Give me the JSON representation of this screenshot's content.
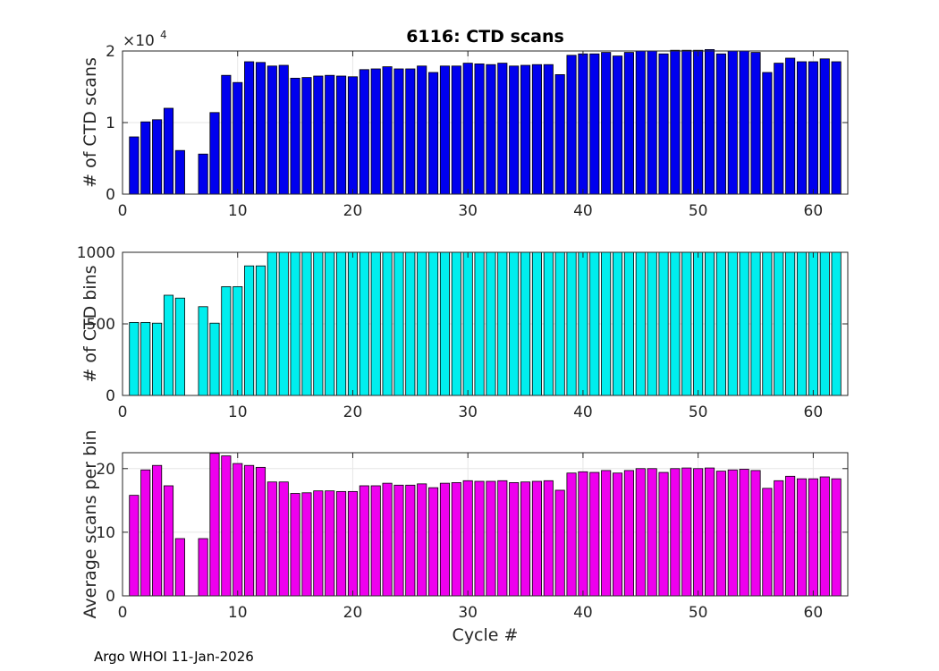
{
  "footer": "Argo WHOI 11-Jan-2026",
  "chart_data": [
    {
      "type": "bar",
      "title": "6116: CTD scans",
      "xlabel": "",
      "ylabel": "# of CTD scans",
      "xlim": [
        0,
        63
      ],
      "ylim": [
        0,
        20000
      ],
      "xticks": [
        0,
        10,
        20,
        30,
        40,
        50,
        60
      ],
      "yticks": [
        0,
        10000,
        20000
      ],
      "ytick_labels": [
        "0",
        "1",
        "2"
      ],
      "exponent_label": "×10",
      "exponent_power": "4",
      "color": "#0000ee",
      "x": [
        1,
        2,
        3,
        4,
        5,
        7,
        8,
        9,
        10,
        11,
        12,
        13,
        14,
        15,
        16,
        17,
        18,
        19,
        20,
        21,
        22,
        23,
        24,
        25,
        26,
        27,
        28,
        29,
        30,
        31,
        32,
        33,
        34,
        35,
        36,
        37,
        38,
        39,
        40,
        41,
        42,
        43,
        44,
        45,
        46,
        47,
        48,
        49,
        50,
        51,
        52,
        53,
        54,
        55,
        56,
        57,
        58,
        59,
        60,
        61,
        62
      ],
      "values": [
        8000,
        10100,
        10400,
        12000,
        6100,
        5600,
        11400,
        16600,
        15600,
        18500,
        18400,
        17900,
        18000,
        16200,
        16300,
        16500,
        16600,
        16500,
        16400,
        17400,
        17500,
        17800,
        17500,
        17500,
        17900,
        17000,
        17900,
        17900,
        18300,
        18200,
        18100,
        18300,
        17900,
        18000,
        18100,
        18100,
        16700,
        19400,
        19600,
        19600,
        19800,
        19300,
        19800,
        20000,
        20000,
        19600,
        20100,
        20100,
        20100,
        20200,
        19600,
        20000,
        20000,
        19800,
        17000,
        18300,
        19000,
        18500,
        18500,
        18900,
        18500
      ]
    },
    {
      "type": "bar",
      "title": "",
      "xlabel": "",
      "ylabel": "# of CTD bins",
      "xlim": [
        0,
        63
      ],
      "ylim": [
        0,
        1000
      ],
      "xticks": [
        0,
        10,
        20,
        30,
        40,
        50,
        60
      ],
      "yticks": [
        0,
        500,
        1000
      ],
      "ytick_labels": [
        "0",
        "500",
        "1000"
      ],
      "color": "#00eeee",
      "x": [
        1,
        2,
        3,
        4,
        5,
        7,
        8,
        9,
        10,
        11,
        12,
        13,
        14,
        15,
        16,
        17,
        18,
        19,
        20,
        21,
        22,
        23,
        24,
        25,
        26,
        27,
        28,
        29,
        30,
        31,
        32,
        33,
        34,
        35,
        36,
        37,
        38,
        39,
        40,
        41,
        42,
        43,
        44,
        45,
        46,
        47,
        48,
        49,
        50,
        51,
        52,
        53,
        54,
        55,
        56,
        57,
        58,
        59,
        60,
        61,
        62
      ],
      "values": [
        510,
        510,
        505,
        700,
        680,
        620,
        505,
        760,
        760,
        905,
        905,
        1000,
        1000,
        1000,
        1000,
        1000,
        1000,
        1000,
        1000,
        1000,
        1000,
        1000,
        1000,
        1000,
        1000,
        1000,
        1000,
        1000,
        1000,
        1000,
        1000,
        1000,
        1000,
        1000,
        1000,
        1000,
        1000,
        1000,
        1000,
        1000,
        1000,
        1000,
        1000,
        1000,
        1000,
        1000,
        1000,
        1000,
        1000,
        1000,
        1000,
        1000,
        1000,
        1000,
        1000,
        1000,
        1000,
        1000,
        1000,
        1000,
        1000
      ]
    },
    {
      "type": "bar",
      "title": "",
      "xlabel": "Cycle #",
      "ylabel": "Average scans per bin",
      "xlim": [
        0,
        63
      ],
      "ylim": [
        0,
        22.5
      ],
      "xticks": [
        0,
        10,
        20,
        30,
        40,
        50,
        60
      ],
      "yticks": [
        0,
        10,
        20
      ],
      "ytick_labels": [
        "0",
        "10",
        "20"
      ],
      "color": "#ee00ee",
      "x": [
        1,
        2,
        3,
        4,
        5,
        7,
        8,
        9,
        10,
        11,
        12,
        13,
        14,
        15,
        16,
        17,
        18,
        19,
        20,
        21,
        22,
        23,
        24,
        25,
        26,
        27,
        28,
        29,
        30,
        31,
        32,
        33,
        34,
        35,
        36,
        37,
        38,
        39,
        40,
        41,
        42,
        43,
        44,
        45,
        46,
        47,
        48,
        49,
        50,
        51,
        52,
        53,
        54,
        55,
        56,
        57,
        58,
        59,
        60,
        61,
        62
      ],
      "values": [
        15.8,
        19.8,
        20.5,
        17.3,
        9.0,
        9.0,
        22.4,
        22.0,
        20.8,
        20.5,
        20.2,
        17.9,
        17.9,
        16.1,
        16.2,
        16.5,
        16.5,
        16.4,
        16.4,
        17.3,
        17.3,
        17.7,
        17.4,
        17.4,
        17.6,
        17.0,
        17.7,
        17.8,
        18.1,
        18.0,
        18.0,
        18.1,
        17.8,
        17.9,
        18.0,
        18.1,
        16.6,
        19.3,
        19.5,
        19.4,
        19.7,
        19.3,
        19.7,
        20.0,
        20.0,
        19.4,
        20.0,
        20.1,
        20.0,
        20.1,
        19.6,
        19.8,
        19.9,
        19.7,
        16.9,
        18.1,
        18.8,
        18.4,
        18.4,
        18.7,
        18.4
      ]
    }
  ]
}
